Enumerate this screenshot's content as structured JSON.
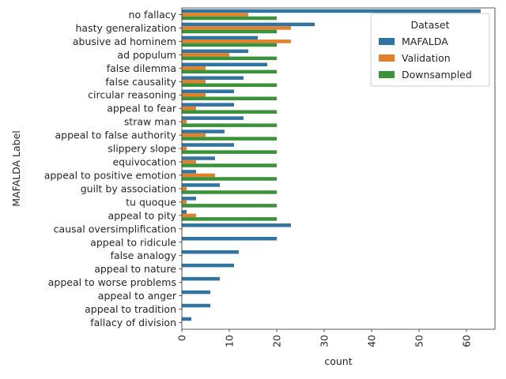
{
  "chart_data": {
    "type": "bar",
    "orientation": "horizontal",
    "xlabel": "count",
    "ylabel": "MAFALDA Label",
    "xlim": [
      0,
      66
    ],
    "xticks": [
      0,
      10,
      20,
      30,
      40,
      50,
      60
    ],
    "grid": false,
    "legend": {
      "title": "Dataset",
      "placement": "top-right"
    },
    "categories": [
      "no fallacy",
      "hasty generalization",
      "abusive ad hominem",
      "ad populum",
      "false dilemma",
      "false causality",
      "circular reasoning",
      "appeal to fear",
      "straw man",
      "appeal to false authority",
      "slippery slope",
      "equivocation",
      "appeal to positive emotion",
      "guilt by association",
      "tu quoque",
      "appeal to pity",
      "causal oversimplification",
      "appeal to ridicule",
      "false analogy",
      "appeal to nature",
      "appeal to worse problems",
      "appeal to anger",
      "appeal to tradition",
      "fallacy of division"
    ],
    "series": [
      {
        "name": "MAFALDA",
        "color": "#3274a1",
        "values": [
          63,
          28,
          16,
          14,
          18,
          13,
          11,
          11,
          13,
          9,
          11,
          7,
          3,
          8,
          3,
          1,
          23,
          20,
          12,
          11,
          8,
          6,
          6,
          2
        ]
      },
      {
        "name": "Validation",
        "color": "#e1812c",
        "values": [
          14,
          23,
          23,
          10,
          5,
          5,
          5,
          3,
          1,
          5,
          1,
          3,
          7,
          1,
          1,
          3,
          0,
          0,
          0,
          0,
          0,
          0,
          0,
          0
        ]
      },
      {
        "name": "Downsampled",
        "color": "#3a923a",
        "values": [
          20,
          20,
          20,
          20,
          20,
          20,
          20,
          20,
          20,
          20,
          20,
          20,
          20,
          20,
          20,
          20,
          0,
          0,
          0,
          0,
          0,
          0,
          0,
          0
        ]
      }
    ]
  }
}
